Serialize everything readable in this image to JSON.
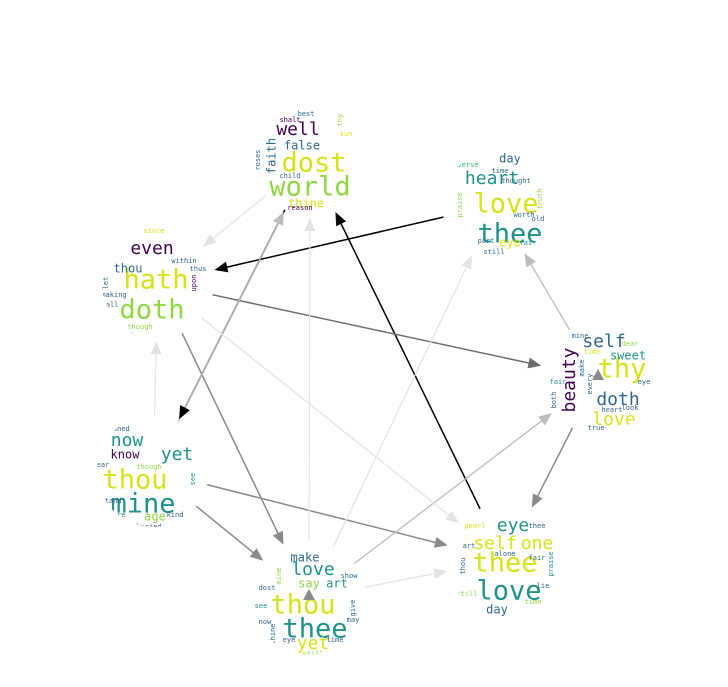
{
  "palette": {
    "dark": "#440154",
    "navy": "#31688e",
    "teal": "#21918c",
    "green": "#35b779",
    "lime": "#90d743",
    "yellow": "#d8e219"
  },
  "clouds": [
    {
      "id": "c1",
      "words": [
        {
          "t": "dost",
          "s": "large",
          "c": "yellow"
        },
        {
          "t": "world",
          "s": "large",
          "c": "lime"
        },
        {
          "t": "well",
          "s": "medium",
          "c": "dark"
        },
        {
          "t": "faith",
          "s": "small",
          "c": "navy"
        },
        {
          "t": "false",
          "s": "small",
          "c": "navy"
        },
        {
          "t": "thine",
          "s": "small",
          "c": "yellow"
        },
        {
          "t": "best",
          "s": "tiny",
          "c": "navy"
        },
        {
          "t": "shalt",
          "s": "tiny",
          "c": "dark"
        },
        {
          "t": "thy",
          "s": "tiny",
          "c": "lime"
        },
        {
          "t": "sun",
          "s": "tiny",
          "c": "yellow"
        },
        {
          "t": "roses",
          "s": "tiny",
          "c": "navy"
        },
        {
          "t": "child",
          "s": "tiny",
          "c": "navy"
        },
        {
          "t": "reason",
          "s": "tiny",
          "c": "dark"
        }
      ]
    },
    {
      "id": "c2",
      "words": [
        {
          "t": "love",
          "s": "large",
          "c": "yellow"
        },
        {
          "t": "thee",
          "s": "large",
          "c": "teal"
        },
        {
          "t": "heart",
          "s": "medium",
          "c": "teal"
        },
        {
          "t": "day",
          "s": "small",
          "c": "navy"
        },
        {
          "t": "verse",
          "s": "tiny",
          "c": "green"
        },
        {
          "t": "time",
          "s": "tiny",
          "c": "navy"
        },
        {
          "t": "thought",
          "s": "tiny",
          "c": "navy"
        },
        {
          "t": "praise",
          "s": "tiny",
          "c": "lime"
        },
        {
          "t": "truth",
          "s": "tiny",
          "c": "lime"
        },
        {
          "t": "worth",
          "s": "tiny",
          "c": "navy"
        },
        {
          "t": "old",
          "s": "tiny",
          "c": "navy"
        },
        {
          "t": "part",
          "s": "tiny",
          "c": "navy"
        },
        {
          "t": "eye",
          "s": "small",
          "c": "yellow"
        },
        {
          "t": "fair",
          "s": "tiny",
          "c": "teal"
        },
        {
          "t": "still",
          "s": "tiny",
          "c": "navy"
        }
      ]
    },
    {
      "id": "c3",
      "words": [
        {
          "t": "hath",
          "s": "large",
          "c": "yellow"
        },
        {
          "t": "doth",
          "s": "large",
          "c": "lime"
        },
        {
          "t": "even",
          "s": "medium",
          "c": "dark"
        },
        {
          "t": "thou",
          "s": "small",
          "c": "navy"
        },
        {
          "t": "since",
          "s": "tiny",
          "c": "yellow"
        },
        {
          "t": "within",
          "s": "tiny",
          "c": "navy"
        },
        {
          "t": "thus",
          "s": "tiny",
          "c": "navy"
        },
        {
          "t": "upon",
          "s": "tiny",
          "c": "dark"
        },
        {
          "t": "let",
          "s": "tiny",
          "c": "navy"
        },
        {
          "t": "making",
          "s": "tiny",
          "c": "navy"
        },
        {
          "t": "though",
          "s": "tiny",
          "c": "lime"
        },
        {
          "t": "shall",
          "s": "tiny",
          "c": "navy"
        },
        {
          "t": "must",
          "s": "tiny",
          "c": "navy"
        }
      ]
    },
    {
      "id": "c4",
      "words": [
        {
          "t": "thy",
          "s": "large",
          "c": "yellow"
        },
        {
          "t": "self",
          "s": "medium",
          "c": "navy"
        },
        {
          "t": "beauty",
          "s": "medium",
          "c": "dark"
        },
        {
          "t": "doth",
          "s": "medium",
          "c": "navy"
        },
        {
          "t": "love",
          "s": "medium",
          "c": "yellow"
        },
        {
          "t": "sweet",
          "s": "small",
          "c": "teal"
        },
        {
          "t": "mine",
          "s": "tiny",
          "c": "navy"
        },
        {
          "t": "dear",
          "s": "tiny",
          "c": "lime"
        },
        {
          "t": "time",
          "s": "tiny",
          "c": "yellow"
        },
        {
          "t": "eye",
          "s": "tiny",
          "c": "navy"
        },
        {
          "t": "fair",
          "s": "tiny",
          "c": "teal"
        },
        {
          "t": "heart",
          "s": "tiny",
          "c": "navy"
        },
        {
          "t": "look",
          "s": "tiny",
          "c": "navy"
        },
        {
          "t": "true",
          "s": "tiny",
          "c": "navy"
        },
        {
          "t": "make",
          "s": "tiny",
          "c": "navy"
        },
        {
          "t": "every",
          "s": "tiny",
          "c": "navy"
        },
        {
          "t": "both",
          "s": "tiny",
          "c": "navy"
        }
      ]
    },
    {
      "id": "c5",
      "words": [
        {
          "t": "thou",
          "s": "large",
          "c": "yellow"
        },
        {
          "t": "mine",
          "s": "large",
          "c": "teal"
        },
        {
          "t": "now",
          "s": "medium",
          "c": "teal"
        },
        {
          "t": "yet",
          "s": "medium",
          "c": "teal"
        },
        {
          "t": "know",
          "s": "small",
          "c": "dark"
        },
        {
          "t": "age",
          "s": "small",
          "c": "lime"
        },
        {
          "t": "ear",
          "s": "tiny",
          "c": "navy"
        },
        {
          "t": "though",
          "s": "tiny",
          "c": "lime"
        },
        {
          "t": "stand",
          "s": "tiny",
          "c": "navy"
        },
        {
          "t": "shore",
          "s": "tiny",
          "c": "teal"
        },
        {
          "t": "kind",
          "s": "tiny",
          "c": "navy"
        },
        {
          "t": "buried",
          "s": "tiny",
          "c": "navy"
        },
        {
          "t": "crowned",
          "s": "tiny",
          "c": "navy"
        },
        {
          "t": "see",
          "s": "tiny",
          "c": "teal"
        }
      ]
    },
    {
      "id": "c6",
      "words": [
        {
          "t": "thou",
          "s": "large",
          "c": "yellow"
        },
        {
          "t": "thee",
          "s": "large",
          "c": "teal"
        },
        {
          "t": "love",
          "s": "medium",
          "c": "teal"
        },
        {
          "t": "make",
          "s": "small",
          "c": "navy"
        },
        {
          "t": "art",
          "s": "small",
          "c": "teal"
        },
        {
          "t": "say",
          "s": "small",
          "c": "lime"
        },
        {
          "t": "yet",
          "s": "medium",
          "c": "yellow"
        },
        {
          "t": "mine",
          "s": "tiny",
          "c": "lime"
        },
        {
          "t": "see",
          "s": "tiny",
          "c": "teal"
        },
        {
          "t": "now",
          "s": "tiny",
          "c": "navy"
        },
        {
          "t": "eye",
          "s": "tiny",
          "c": "navy"
        },
        {
          "t": "give",
          "s": "tiny",
          "c": "navy"
        },
        {
          "t": "time",
          "s": "tiny",
          "c": "navy"
        },
        {
          "t": "still",
          "s": "tiny",
          "c": "lime"
        },
        {
          "t": "show",
          "s": "tiny",
          "c": "navy"
        },
        {
          "t": "may",
          "s": "tiny",
          "c": "navy"
        },
        {
          "t": "dost",
          "s": "tiny",
          "c": "navy"
        },
        {
          "t": "thine",
          "s": "tiny",
          "c": "navy"
        }
      ]
    },
    {
      "id": "c7",
      "words": [
        {
          "t": "thee",
          "s": "large",
          "c": "yellow"
        },
        {
          "t": "love",
          "s": "large",
          "c": "teal"
        },
        {
          "t": "eye",
          "s": "medium",
          "c": "teal"
        },
        {
          "t": "self",
          "s": "medium",
          "c": "yellow"
        },
        {
          "t": "one",
          "s": "medium",
          "c": "yellow"
        },
        {
          "t": "day",
          "s": "small",
          "c": "navy"
        },
        {
          "t": "alone",
          "s": "tiny",
          "c": "navy"
        },
        {
          "t": "fair",
          "s": "tiny",
          "c": "navy"
        },
        {
          "t": "art",
          "s": "tiny",
          "c": "navy"
        },
        {
          "t": "thou",
          "s": "tiny",
          "c": "navy"
        },
        {
          "t": "praise",
          "s": "tiny",
          "c": "teal"
        },
        {
          "t": "lie",
          "s": "tiny",
          "c": "navy"
        },
        {
          "t": "time",
          "s": "tiny",
          "c": "lime"
        },
        {
          "t": "truth",
          "s": "tiny",
          "c": "navy"
        },
        {
          "t": "pearl",
          "s": "tiny",
          "c": "yellow"
        },
        {
          "t": "thee",
          "s": "tiny",
          "c": "navy"
        },
        {
          "t": "still",
          "s": "tiny",
          "c": "lime"
        }
      ]
    }
  ],
  "edges": [
    {
      "from": "c2",
      "to": "c3",
      "shade": "black"
    },
    {
      "from": "c1",
      "to": "c5",
      "shade": "black"
    },
    {
      "from": "c7",
      "to": "c1",
      "shade": "black"
    },
    {
      "from": "c3",
      "to": "c4",
      "shade": "dim"
    },
    {
      "from": "c3",
      "to": "c6",
      "shade": "mid"
    },
    {
      "from": "c5",
      "to": "c6",
      "shade": "mid"
    },
    {
      "from": "c4",
      "to": "c7",
      "shade": "mid"
    },
    {
      "from": "c5",
      "to": "c7",
      "shade": "mid"
    },
    {
      "from": "c4",
      "to": "c2",
      "shade": "light"
    },
    {
      "from": "c6",
      "to": "c4",
      "shade": "light"
    },
    {
      "from": "c5",
      "to": "c1",
      "shade": "light"
    },
    {
      "from": "c3",
      "to": "c7",
      "shade": "faint"
    },
    {
      "from": "c6",
      "to": "c7",
      "shade": "faint"
    },
    {
      "from": "c1",
      "to": "c3",
      "shade": "faint"
    },
    {
      "from": "c6",
      "to": "c1",
      "shade": "faint"
    },
    {
      "from": "c6",
      "to": "c2",
      "shade": "faint"
    },
    {
      "from": "c5",
      "to": "c3",
      "shade": "faint"
    }
  ],
  "self_loops": [
    "c4",
    "c6"
  ]
}
